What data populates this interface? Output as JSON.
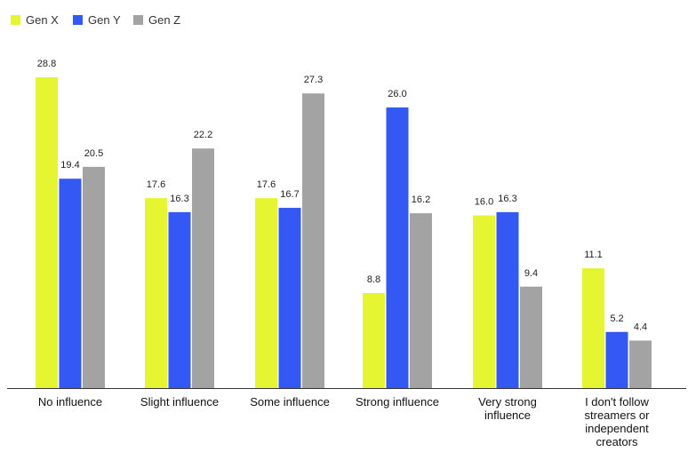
{
  "chart_data": {
    "type": "bar",
    "categories": [
      [
        "No influence"
      ],
      [
        "Slight influence"
      ],
      [
        "Some influence"
      ],
      [
        "Strong influence"
      ],
      [
        "Very strong",
        "influence"
      ],
      [
        "I don't follow",
        "streamers or",
        "independent",
        "creators"
      ]
    ],
    "series": [
      {
        "name": "Gen X",
        "color": "#e6f531",
        "values": [
          28.8,
          17.6,
          17.6,
          8.8,
          16.0,
          11.1
        ],
        "labels": [
          "28.8",
          "17.6",
          "17.6",
          "8.8",
          "16.0",
          "11.1"
        ]
      },
      {
        "name": "Gen Y",
        "color": "#3358f4",
        "values": [
          19.4,
          16.3,
          16.7,
          26.0,
          16.3,
          5.2
        ],
        "labels": [
          "19.4",
          "16.3",
          "16.7",
          "26.0",
          "16.3",
          "5.2"
        ]
      },
      {
        "name": "Gen Z",
        "color": "#a3a3a3",
        "values": [
          20.5,
          22.2,
          27.3,
          16.2,
          9.4,
          4.4
        ],
        "labels": [
          "20.5",
          "22.2",
          "27.3",
          "16.2",
          "9.4",
          "4.4"
        ]
      }
    ],
    "ylim": [
      0,
      28.8
    ],
    "legend": "top-left",
    "grid": false
  }
}
